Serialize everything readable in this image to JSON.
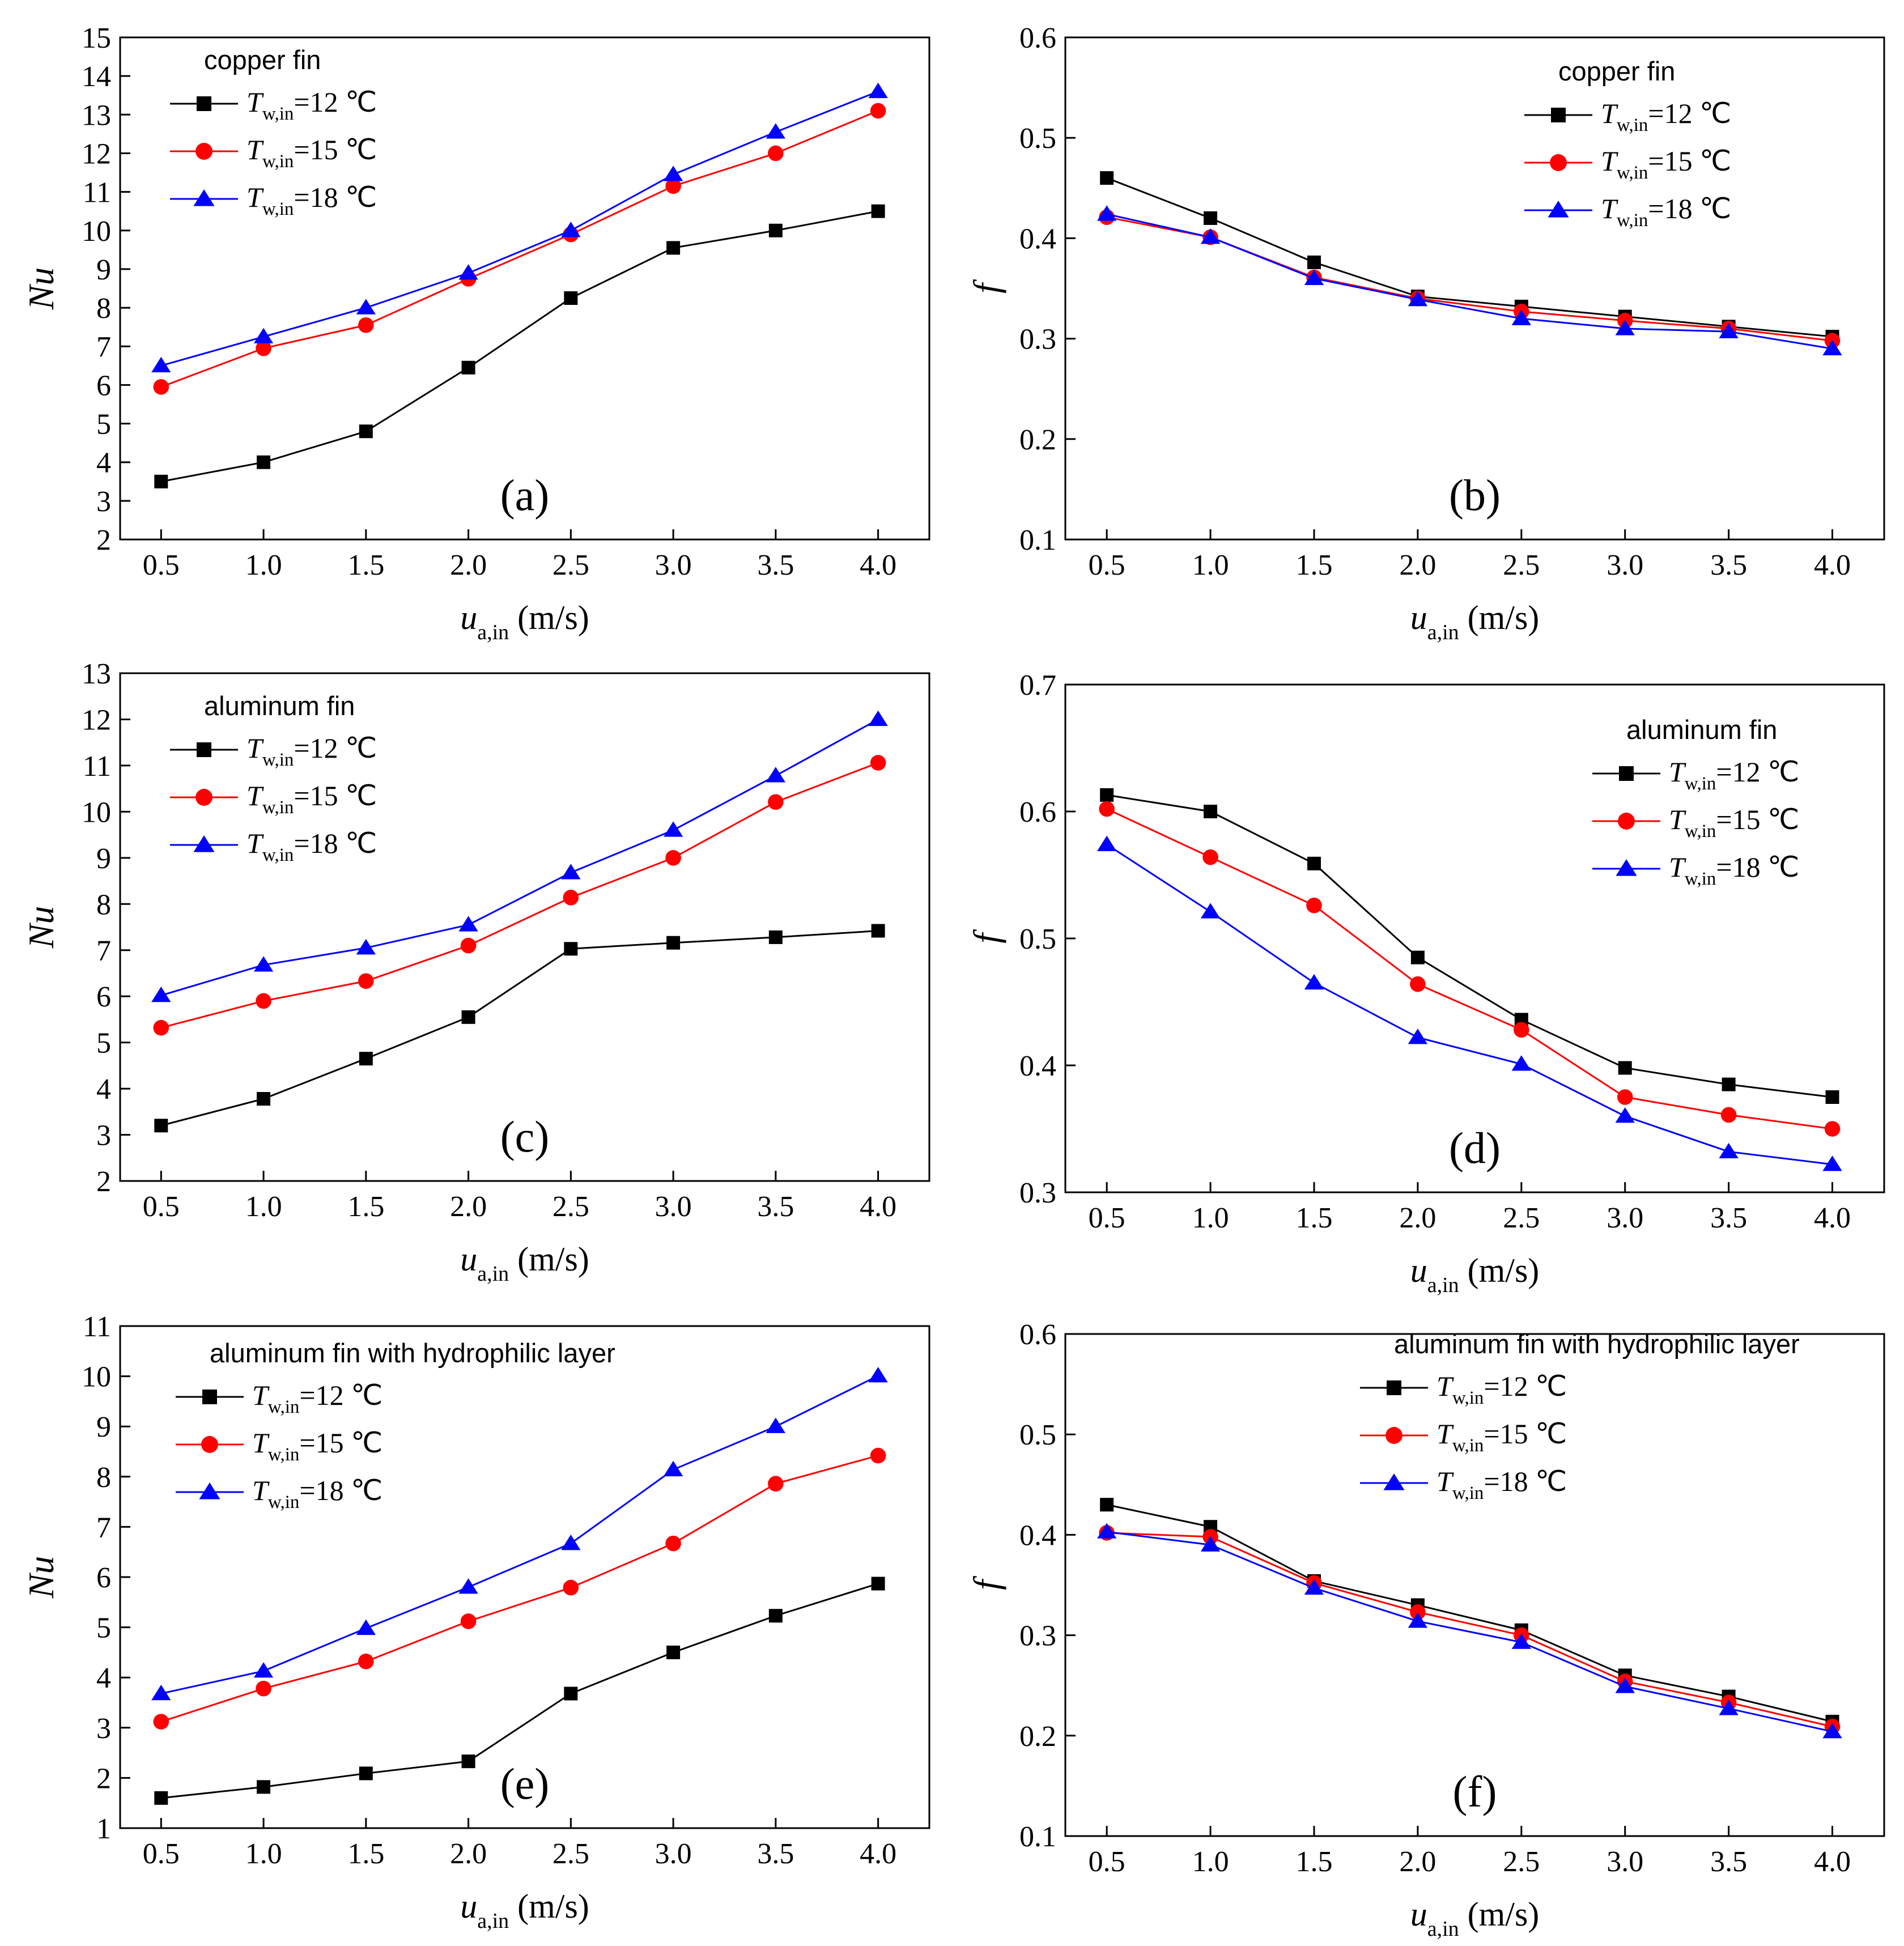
{
  "chart_data": [
    {
      "type": "line",
      "panel": "(a)",
      "legend_title": "copper fin",
      "legend_position": "top-left",
      "xlabel_sym": "u",
      "xlabel_sub": "a,in",
      "xlabel_unit": " (m/s)",
      "ylabel": "Nu",
      "xlim": [
        0.3,
        4.25
      ],
      "ylim": [
        2,
        15
      ],
      "x_ticks": [
        "0.5",
        "1.0",
        "1.5",
        "2.0",
        "2.5",
        "3.0",
        "3.5",
        "4.0"
      ],
      "y_ticks": [
        "2",
        "3",
        "4",
        "5",
        "6",
        "7",
        "8",
        "9",
        "10",
        "11",
        "12",
        "13",
        "14",
        "15"
      ],
      "x": [
        0.5,
        1.0,
        1.5,
        2.0,
        2.5,
        3.0,
        3.5,
        4.0
      ],
      "series": [
        {
          "sym": "T",
          "sub": "w,in",
          "eq": "=12 ℃",
          "color": "#000000",
          "marker": "square",
          "values": [
            3.5,
            4.0,
            4.8,
            6.45,
            8.25,
            9.55,
            10.0,
            10.5
          ]
        },
        {
          "sym": "T",
          "sub": "w,in",
          "eq": "=15 ℃",
          "color": "#ff0000",
          "marker": "circle",
          "values": [
            5.95,
            6.95,
            7.55,
            8.75,
            9.9,
            11.15,
            12.0,
            13.1
          ]
        },
        {
          "sym": "T",
          "sub": "w,in",
          "eq": "=18 ℃",
          "color": "#0000ff",
          "marker": "triangle",
          "values": [
            6.5,
            7.25,
            8.0,
            8.9,
            10.0,
            11.45,
            12.55,
            13.6
          ]
        }
      ]
    },
    {
      "type": "line",
      "panel": "(b)",
      "legend_title": "copper fin",
      "legend_position": "top-right",
      "xlabel_sym": "u",
      "xlabel_sub": "a,in",
      "xlabel_unit": " (m/s)",
      "ylabel": "f",
      "xlim": [
        0.3,
        4.25
      ],
      "ylim": [
        0.1,
        0.6
      ],
      "x_ticks": [
        "0.5",
        "1.0",
        "1.5",
        "2.0",
        "2.5",
        "3.0",
        "3.5",
        "4.0"
      ],
      "y_ticks": [
        "0.1",
        "0.2",
        "0.3",
        "0.4",
        "0.5",
        "0.6"
      ],
      "x": [
        0.5,
        1.0,
        1.5,
        2.0,
        2.5,
        3.0,
        3.5,
        4.0
      ],
      "series": [
        {
          "sym": "T",
          "sub": "w,in",
          "eq": "=12 ℃",
          "color": "#000000",
          "marker": "square",
          "values": [
            0.46,
            0.42,
            0.376,
            0.342,
            0.332,
            0.322,
            0.312,
            0.302
          ]
        },
        {
          "sym": "T",
          "sub": "w,in",
          "eq": "=15 ℃",
          "color": "#ff0000",
          "marker": "circle",
          "values": [
            0.421,
            0.401,
            0.361,
            0.34,
            0.327,
            0.318,
            0.31,
            0.298
          ]
        },
        {
          "sym": "T",
          "sub": "w,in",
          "eq": "=18 ℃",
          "color": "#0000ff",
          "marker": "triangle",
          "values": [
            0.424,
            0.401,
            0.36,
            0.339,
            0.32,
            0.31,
            0.307,
            0.29
          ]
        }
      ]
    },
    {
      "type": "line",
      "panel": "(c)",
      "legend_title": "aluminum fin",
      "legend_position": "top-left",
      "xlabel_sym": "u",
      "xlabel_sub": "a,in",
      "xlabel_unit": " (m/s)",
      "ylabel": "Nu",
      "xlim": [
        0.3,
        4.25
      ],
      "ylim": [
        2,
        13
      ],
      "x_ticks": [
        "0.5",
        "1.0",
        "1.5",
        "2.0",
        "2.5",
        "3.0",
        "3.5",
        "4.0"
      ],
      "y_ticks": [
        "2",
        "3",
        "4",
        "5",
        "6",
        "7",
        "8",
        "9",
        "10",
        "11",
        "12",
        "13"
      ],
      "x": [
        0.5,
        1.0,
        1.5,
        2.0,
        2.5,
        3.0,
        3.5,
        4.0
      ],
      "series": [
        {
          "sym": "T",
          "sub": "w,in",
          "eq": "=12 ℃",
          "color": "#000000",
          "marker": "square",
          "values": [
            3.2,
            3.78,
            4.65,
            5.55,
            7.03,
            7.16,
            7.28,
            7.42
          ]
        },
        {
          "sym": "T",
          "sub": "w,in",
          "eq": "=15 ℃",
          "color": "#ff0000",
          "marker": "circle",
          "values": [
            5.32,
            5.9,
            6.33,
            7.1,
            8.14,
            9.0,
            10.21,
            11.06
          ]
        },
        {
          "sym": "T",
          "sub": "w,in",
          "eq": "=18 ℃",
          "color": "#0000ff",
          "marker": "triangle",
          "values": [
            6.02,
            6.68,
            7.05,
            7.55,
            8.68,
            9.6,
            10.78,
            12.0
          ]
        }
      ]
    },
    {
      "type": "line",
      "panel": "(d)",
      "legend_title": "aluminum fin",
      "legend_position": "top-right",
      "xlabel_sym": "u",
      "xlabel_sub": "a,in",
      "xlabel_unit": " (m/s)",
      "ylabel": "f",
      "xlim": [
        0.3,
        4.25
      ],
      "ylim": [
        0.3,
        0.7
      ],
      "x_ticks": [
        "0.5",
        "1.0",
        "1.5",
        "2.0",
        "2.5",
        "3.0",
        "3.5",
        "4.0"
      ],
      "y_ticks": [
        "0.3",
        "0.4",
        "0.5",
        "0.6",
        "0.7"
      ],
      "x": [
        0.5,
        1.0,
        1.5,
        2.0,
        2.5,
        3.0,
        3.5,
        4.0
      ],
      "series": [
        {
          "sym": "T",
          "sub": "w,in",
          "eq": "=12 ℃",
          "color": "#000000",
          "marker": "square",
          "values": [
            0.613,
            0.6,
            0.559,
            0.485,
            0.436,
            0.398,
            0.385,
            0.375
          ]
        },
        {
          "sym": "T",
          "sub": "w,in",
          "eq": "=15 ℃",
          "color": "#ff0000",
          "marker": "circle",
          "values": [
            0.602,
            0.564,
            0.526,
            0.464,
            0.428,
            0.375,
            0.361,
            0.35
          ]
        },
        {
          "sym": "T",
          "sub": "w,in",
          "eq": "=18 ℃",
          "color": "#0000ff",
          "marker": "triangle",
          "values": [
            0.574,
            0.521,
            0.465,
            0.422,
            0.401,
            0.36,
            0.332,
            0.322
          ]
        }
      ]
    },
    {
      "type": "line",
      "panel": "(e)",
      "legend_title": "aluminum fin with hydrophilic layer",
      "legend_position": "top-left",
      "xlabel_sym": "u",
      "xlabel_sub": "a,in",
      "xlabel_unit": " (m/s)",
      "ylabel": "Nu",
      "xlim": [
        0.3,
        4.25
      ],
      "ylim": [
        1,
        11
      ],
      "x_ticks": [
        "0.5",
        "1.0",
        "1.5",
        "2.0",
        "2.5",
        "3.0",
        "3.5",
        "4.0"
      ],
      "y_ticks": [
        "1",
        "2",
        "3",
        "4",
        "5",
        "6",
        "7",
        "8",
        "9",
        "10",
        "11"
      ],
      "x": [
        0.5,
        1.0,
        1.5,
        2.0,
        2.5,
        3.0,
        3.5,
        4.0
      ],
      "series": [
        {
          "sym": "T",
          "sub": "w,in",
          "eq": "=12 ℃",
          "color": "#000000",
          "marker": "square",
          "values": [
            1.6,
            1.82,
            2.09,
            2.33,
            3.68,
            4.5,
            5.23,
            5.87
          ]
        },
        {
          "sym": "T",
          "sub": "w,in",
          "eq": "=15 ℃",
          "color": "#ff0000",
          "marker": "circle",
          "values": [
            3.12,
            3.78,
            4.32,
            5.12,
            5.79,
            6.67,
            7.86,
            8.42
          ]
        },
        {
          "sym": "T",
          "sub": "w,in",
          "eq": "=18 ℃",
          "color": "#0000ff",
          "marker": "triangle",
          "values": [
            3.68,
            4.13,
            4.98,
            5.8,
            6.67,
            8.14,
            9.0,
            10.01
          ]
        }
      ]
    },
    {
      "type": "line",
      "panel": "(f)",
      "legend_title": "aluminum fin with hydrophilic layer",
      "legend_position": "top-right",
      "xlabel_sym": "u",
      "xlabel_sub": "a,in",
      "xlabel_unit": " (m/s)",
      "ylabel": "f",
      "xlim": [
        0.3,
        4.25
      ],
      "ylim": [
        0.1,
        0.6
      ],
      "x_ticks": [
        "0.5",
        "1.0",
        "1.5",
        "2.0",
        "2.5",
        "3.0",
        "3.5",
        "4.0"
      ],
      "y_ticks": [
        "0.1",
        "0.2",
        "0.3",
        "0.4",
        "0.5",
        "0.6"
      ],
      "x": [
        0.5,
        1.0,
        1.5,
        2.0,
        2.5,
        3.0,
        3.5,
        4.0
      ],
      "series": [
        {
          "sym": "T",
          "sub": "w,in",
          "eq": "=12 ℃",
          "color": "#000000",
          "marker": "square",
          "values": [
            0.43,
            0.408,
            0.354,
            0.33,
            0.305,
            0.26,
            0.239,
            0.214
          ]
        },
        {
          "sym": "T",
          "sub": "w,in",
          "eq": "=15 ℃",
          "color": "#ff0000",
          "marker": "circle",
          "values": [
            0.402,
            0.398,
            0.352,
            0.323,
            0.3,
            0.254,
            0.233,
            0.209
          ]
        },
        {
          "sym": "T",
          "sub": "w,in",
          "eq": "=18 ℃",
          "color": "#0000ff",
          "marker": "triangle",
          "values": [
            0.403,
            0.39,
            0.347,
            0.314,
            0.293,
            0.249,
            0.227,
            0.204
          ]
        }
      ]
    }
  ]
}
